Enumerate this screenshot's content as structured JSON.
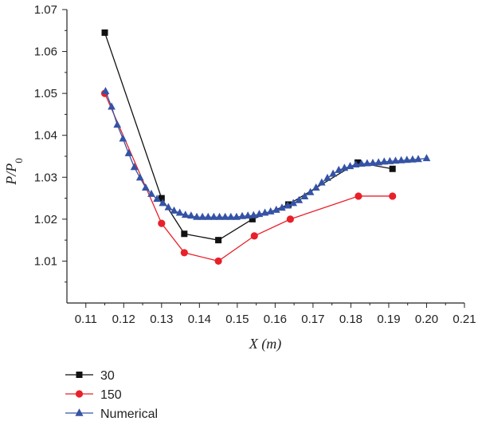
{
  "chart_data": {
    "type": "line",
    "xlabel": "X (m)",
    "ylabel": "P/P0",
    "xlim": [
      0.105,
      0.21
    ],
    "ylim": [
      1.0,
      1.07
    ],
    "xticks": [
      "0.11",
      "0.12",
      "0.13",
      "0.14",
      "0.15",
      "0.16",
      "0.17",
      "0.18",
      "0.19",
      "0.20",
      "0.21"
    ],
    "yticks": [
      "1.01",
      "1.02",
      "1.03",
      "1.04",
      "1.05",
      "1.06",
      "1.07"
    ],
    "legend_position": "bottom-left",
    "series": [
      {
        "name": "30",
        "color": "#111111",
        "marker": "square",
        "x": [
          0.115,
          0.13,
          0.136,
          0.145,
          0.154,
          0.1635,
          0.1818,
          0.191
        ],
        "y": [
          1.0645,
          1.025,
          1.0165,
          1.015,
          1.02,
          1.0235,
          1.0335,
          1.032
        ]
      },
      {
        "name": "150",
        "color": "#e8202a",
        "marker": "circle",
        "x": [
          0.115,
          0.13,
          0.136,
          0.145,
          0.1545,
          0.164,
          0.182,
          0.191
        ],
        "y": [
          1.05,
          1.019,
          1.012,
          1.01,
          1.016,
          1.02,
          1.0255,
          1.0255
        ]
      },
      {
        "name": "Numerical",
        "color": "#3553a5",
        "marker": "triangle",
        "x": [
          0.1152,
          0.1168,
          0.1183,
          0.1198,
          0.1213,
          0.1228,
          0.1243,
          0.1258,
          0.1273,
          0.1288,
          0.1303,
          0.1318,
          0.1333,
          0.1348,
          0.1363,
          0.1378,
          0.1393,
          0.1408,
          0.1423,
          0.1438,
          0.1453,
          0.1468,
          0.1483,
          0.1498,
          0.1513,
          0.1528,
          0.1543,
          0.1558,
          0.1573,
          0.1588,
          0.1603,
          0.1618,
          0.1633,
          0.1648,
          0.1663,
          0.1678,
          0.1693,
          0.1708,
          0.1723,
          0.1738,
          0.1753,
          0.1768,
          0.1783,
          0.1798,
          0.1813,
          0.1828,
          0.1843,
          0.1858,
          0.1873,
          0.1888,
          0.1903,
          0.1918,
          0.1933,
          0.1948,
          0.1963,
          0.1978,
          0.2
        ],
        "y": [
          1.0505,
          1.0468,
          1.0425,
          1.0392,
          1.0357,
          1.0324,
          1.0299,
          1.0275,
          1.026,
          1.0248,
          1.0238,
          1.0228,
          1.022,
          1.0215,
          1.021,
          1.0208,
          1.0205,
          1.0205,
          1.0205,
          1.0205,
          1.0205,
          1.0205,
          1.0205,
          1.0205,
          1.0207,
          1.0208,
          1.0209,
          1.0212,
          1.0215,
          1.0218,
          1.0222,
          1.0227,
          1.0232,
          1.0238,
          1.0245,
          1.0254,
          1.0264,
          1.0275,
          1.0287,
          1.0298,
          1.0308,
          1.0317,
          1.0322,
          1.0326,
          1.033,
          1.0332,
          1.0333,
          1.0334,
          1.0335,
          1.0337,
          1.0338,
          1.0339,
          1.034,
          1.0341,
          1.0342,
          1.0343,
          1.0345
        ]
      }
    ]
  }
}
